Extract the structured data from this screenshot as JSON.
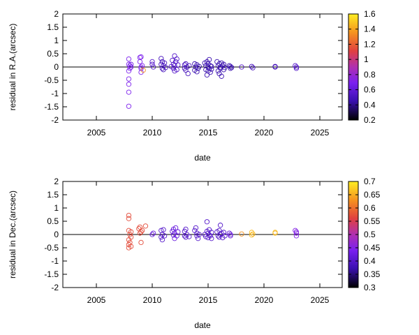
{
  "chart_data": [
    {
      "type": "scatter",
      "xlabel": "date",
      "ylabel": "residual in R.A.(arcsec)",
      "xlim": [
        2002,
        2027
      ],
      "ylim": [
        -2,
        2
      ],
      "xticks": [
        2005,
        2010,
        2015,
        2020,
        2025
      ],
      "yticks": [
        -2,
        -1.5,
        -1,
        -0.5,
        0,
        0.5,
        1,
        1.5,
        2
      ],
      "zero_line": true,
      "grid": false,
      "legend": "none",
      "colorbar": {
        "min": 0.2,
        "max": 1.6,
        "ticks": [
          0.2,
          0.4,
          0.6,
          0.8,
          1,
          1.2,
          1.4,
          1.6
        ]
      },
      "points": [
        [
          2007.9,
          0.3,
          0.7
        ],
        [
          2007.9,
          0.1,
          0.7
        ],
        [
          2007.9,
          -0.15,
          0.7
        ],
        [
          2007.9,
          -0.45,
          0.7
        ],
        [
          2007.9,
          -0.65,
          0.7
        ],
        [
          2007.9,
          -0.95,
          0.7
        ],
        [
          2007.9,
          -1.48,
          0.7
        ],
        [
          2008.0,
          0.05,
          0.7
        ],
        [
          2008.0,
          -0.05,
          0.7
        ],
        [
          2008.1,
          0.0,
          0.7
        ],
        [
          2008.1,
          0.1,
          0.65
        ],
        [
          2008.9,
          0.36,
          0.7
        ],
        [
          2008.9,
          0.2,
          0.7
        ],
        [
          2009.0,
          0.38,
          0.7
        ],
        [
          2009.0,
          0.0,
          0.7
        ],
        [
          2009.0,
          -0.05,
          0.7
        ],
        [
          2009.0,
          -0.2,
          0.7
        ],
        [
          2009.1,
          0.05,
          0.7
        ],
        [
          2009.2,
          -0.12,
          1.35
        ],
        [
          2010.0,
          0.2,
          0.55
        ],
        [
          2010.0,
          0.1,
          0.55
        ],
        [
          2010.1,
          0.0,
          0.55
        ],
        [
          2010.8,
          0.32,
          0.5
        ],
        [
          2010.8,
          0.1,
          0.5
        ],
        [
          2010.9,
          -0.05,
          0.5
        ],
        [
          2010.9,
          0.2,
          0.5
        ],
        [
          2011.0,
          -0.1,
          0.5
        ],
        [
          2011.0,
          0.05,
          0.5
        ],
        [
          2011.1,
          0.15,
          0.5
        ],
        [
          2011.2,
          -0.02,
          0.5
        ],
        [
          2011.8,
          0.25,
          0.55
        ],
        [
          2011.9,
          -0.05,
          0.55
        ],
        [
          2011.9,
          0.1,
          0.55
        ],
        [
          2012.0,
          0.42,
          0.55
        ],
        [
          2012.0,
          -0.15,
          0.55
        ],
        [
          2012.0,
          0.05,
          0.55
        ],
        [
          2012.1,
          0.2,
          0.55
        ],
        [
          2012.2,
          0.3,
          0.55
        ],
        [
          2012.2,
          -0.1,
          0.55
        ],
        [
          2012.3,
          0.08,
          0.55
        ],
        [
          2011.7,
          0.02,
          0.55
        ],
        [
          2012.9,
          0.08,
          0.5
        ],
        [
          2012.9,
          -0.05,
          0.5
        ],
        [
          2013.0,
          0.12,
          0.5
        ],
        [
          2013.0,
          -0.12,
          0.5
        ],
        [
          2013.1,
          0.0,
          0.5
        ],
        [
          2013.2,
          -0.25,
          0.5
        ],
        [
          2013.3,
          0.05,
          0.5
        ],
        [
          2013.8,
          0.12,
          0.45
        ],
        [
          2013.8,
          -0.12,
          0.45
        ],
        [
          2013.9,
          0.0,
          0.45
        ],
        [
          2014.0,
          -0.18,
          0.45
        ],
        [
          2014.0,
          0.08,
          0.45
        ],
        [
          2014.1,
          -0.05,
          0.45
        ],
        [
          2014.2,
          0.02,
          0.45
        ],
        [
          2014.7,
          0.15,
          0.45
        ],
        [
          2014.8,
          -0.1,
          0.45
        ],
        [
          2014.8,
          0.05,
          0.45
        ],
        [
          2014.9,
          -0.3,
          0.45
        ],
        [
          2014.9,
          0.2,
          0.45
        ],
        [
          2015.0,
          0.0,
          0.45
        ],
        [
          2015.0,
          -0.15,
          0.45
        ],
        [
          2015.0,
          0.12,
          0.45
        ],
        [
          2015.1,
          -0.05,
          0.45
        ],
        [
          2015.1,
          0.28,
          0.45
        ],
        [
          2015.2,
          0.05,
          0.45
        ],
        [
          2015.2,
          -0.2,
          0.45
        ],
        [
          2015.3,
          0.02,
          0.45
        ],
        [
          2015.3,
          -0.08,
          0.45
        ],
        [
          2015.8,
          0.2,
          0.45
        ],
        [
          2015.9,
          0.05,
          0.45
        ],
        [
          2015.9,
          -0.15,
          0.45
        ],
        [
          2016.0,
          0.12,
          0.45
        ],
        [
          2016.0,
          -0.25,
          0.45
        ],
        [
          2016.1,
          0.0,
          0.45
        ],
        [
          2016.1,
          -0.05,
          0.45
        ],
        [
          2016.2,
          0.15,
          0.45
        ],
        [
          2016.2,
          -0.35,
          0.45
        ],
        [
          2016.3,
          0.05,
          0.45
        ],
        [
          2016.4,
          -0.1,
          0.45
        ],
        [
          2016.4,
          0.1,
          0.45
        ],
        [
          2016.5,
          -0.02,
          0.45
        ],
        [
          2016.9,
          0.05,
          0.45
        ],
        [
          2017.0,
          -0.05,
          0.45
        ],
        [
          2017.0,
          0.02,
          0.45
        ],
        [
          2017.1,
          -0.02,
          0.45
        ],
        [
          2018.0,
          0.0,
          0.55
        ],
        [
          2018.9,
          0.02,
          0.5
        ],
        [
          2019.0,
          -0.03,
          0.5
        ],
        [
          2021.0,
          0.02,
          0.5
        ],
        [
          2021.0,
          0.0,
          0.5
        ],
        [
          2022.8,
          0.05,
          0.55
        ],
        [
          2022.9,
          -0.05,
          0.55
        ],
        [
          2022.9,
          0.0,
          0.55
        ]
      ]
    },
    {
      "type": "scatter",
      "xlabel": "date",
      "ylabel": "residual in Dec.(arcsec)",
      "xlim": [
        2002,
        2027
      ],
      "ylim": [
        -2,
        2
      ],
      "xticks": [
        2005,
        2010,
        2015,
        2020,
        2025
      ],
      "yticks": [
        -2,
        -1.5,
        -1,
        -0.5,
        0,
        0.5,
        1,
        1.5,
        2
      ],
      "zero_line": true,
      "grid": false,
      "legend": "none",
      "colorbar": {
        "min": 0.3,
        "max": 0.7,
        "ticks": [
          0.3,
          0.35,
          0.4,
          0.45,
          0.5,
          0.55,
          0.6,
          0.65,
          0.7
        ]
      },
      "points": [
        [
          2007.9,
          0.72,
          0.57
        ],
        [
          2007.9,
          0.6,
          0.57
        ],
        [
          2007.9,
          0.15,
          0.57
        ],
        [
          2007.9,
          -0.2,
          0.57
        ],
        [
          2007.9,
          -0.38,
          0.57
        ],
        [
          2007.9,
          -0.5,
          0.57
        ],
        [
          2008.0,
          0.0,
          0.57
        ],
        [
          2008.0,
          -0.3,
          0.57
        ],
        [
          2008.1,
          -0.1,
          0.57
        ],
        [
          2008.1,
          0.1,
          0.57
        ],
        [
          2008.1,
          -0.45,
          0.57
        ],
        [
          2008.8,
          0.22,
          0.57
        ],
        [
          2008.9,
          0.05,
          0.57
        ],
        [
          2008.9,
          0.28,
          0.57
        ],
        [
          2009.0,
          0.1,
          0.57
        ],
        [
          2009.0,
          -0.3,
          0.57
        ],
        [
          2009.1,
          0.15,
          0.57
        ],
        [
          2009.4,
          0.32,
          0.57
        ],
        [
          2010.0,
          0.0,
          0.42
        ],
        [
          2010.1,
          0.05,
          0.42
        ],
        [
          2010.8,
          0.15,
          0.4
        ],
        [
          2010.8,
          -0.1,
          0.4
        ],
        [
          2010.9,
          0.0,
          0.4
        ],
        [
          2010.9,
          -0.2,
          0.4
        ],
        [
          2011.0,
          0.18,
          0.4
        ],
        [
          2011.1,
          -0.05,
          0.4
        ],
        [
          2011.8,
          0.12,
          0.42
        ],
        [
          2011.9,
          -0.02,
          0.42
        ],
        [
          2011.9,
          0.2,
          0.42
        ],
        [
          2012.0,
          -0.15,
          0.42
        ],
        [
          2012.0,
          0.05,
          0.42
        ],
        [
          2012.1,
          0.25,
          0.42
        ],
        [
          2012.2,
          -0.05,
          0.42
        ],
        [
          2012.3,
          0.1,
          0.42
        ],
        [
          2012.9,
          0.12,
          0.4
        ],
        [
          2012.9,
          -0.05,
          0.4
        ],
        [
          2013.0,
          0.2,
          0.4
        ],
        [
          2013.0,
          -0.1,
          0.4
        ],
        [
          2013.1,
          0.0,
          0.4
        ],
        [
          2013.3,
          -0.08,
          0.4
        ],
        [
          2013.8,
          0.15,
          0.4
        ],
        [
          2013.9,
          0.25,
          0.4
        ],
        [
          2014.0,
          -0.05,
          0.4
        ],
        [
          2014.0,
          0.05,
          0.4
        ],
        [
          2014.1,
          -0.15,
          0.4
        ],
        [
          2014.2,
          0.0,
          0.4
        ],
        [
          2014.7,
          0.0,
          0.4
        ],
        [
          2014.8,
          -0.08,
          0.4
        ],
        [
          2014.9,
          0.48,
          0.4
        ],
        [
          2014.9,
          0.12,
          0.4
        ],
        [
          2015.0,
          -0.12,
          0.4
        ],
        [
          2015.0,
          0.05,
          0.4
        ],
        [
          2015.1,
          0.18,
          0.4
        ],
        [
          2015.1,
          -0.02,
          0.4
        ],
        [
          2015.2,
          -0.05,
          0.4
        ],
        [
          2015.3,
          0.08,
          0.4
        ],
        [
          2015.3,
          -0.15,
          0.4
        ],
        [
          2015.8,
          0.1,
          0.4
        ],
        [
          2015.9,
          -0.05,
          0.4
        ],
        [
          2016.0,
          0.15,
          0.4
        ],
        [
          2016.0,
          -0.1,
          0.4
        ],
        [
          2016.1,
          0.35,
          0.4
        ],
        [
          2016.1,
          0.0,
          0.4
        ],
        [
          2016.2,
          0.05,
          0.4
        ],
        [
          2016.3,
          -0.12,
          0.4
        ],
        [
          2016.4,
          0.08,
          0.4
        ],
        [
          2016.5,
          -0.05,
          0.4
        ],
        [
          2016.9,
          0.05,
          0.42
        ],
        [
          2017.0,
          -0.05,
          0.42
        ],
        [
          2017.0,
          0.0,
          0.42
        ],
        [
          2018.0,
          0.02,
          0.63
        ],
        [
          2018.9,
          0.08,
          0.66
        ],
        [
          2018.9,
          -0.02,
          0.66
        ],
        [
          2019.0,
          0.02,
          0.66
        ],
        [
          2021.0,
          0.05,
          0.66
        ],
        [
          2021.0,
          0.08,
          0.66
        ],
        [
          2022.8,
          0.15,
          0.45
        ],
        [
          2022.9,
          0.05,
          0.45
        ],
        [
          2022.9,
          -0.05,
          0.45
        ],
        [
          2022.9,
          0.1,
          0.45
        ]
      ]
    }
  ]
}
